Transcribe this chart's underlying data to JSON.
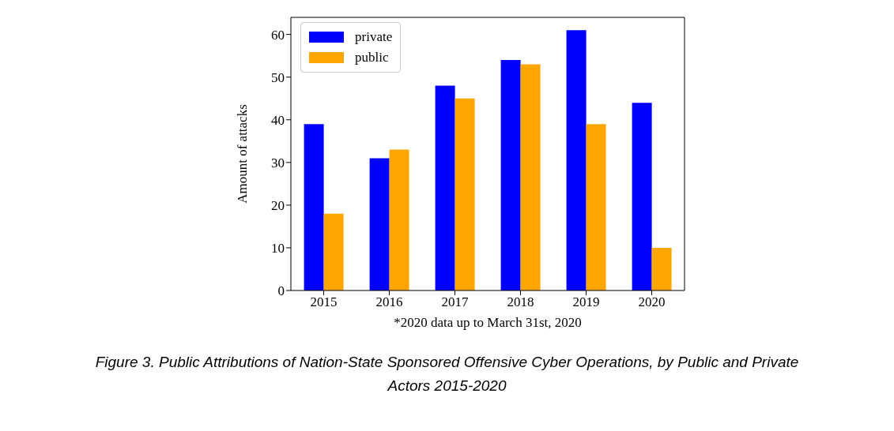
{
  "chart_data": {
    "type": "bar",
    "xlabel": "*2020 data up to March 31st, 2020",
    "ylabel": "Amount of attacks",
    "categories": [
      "2015",
      "2016",
      "2017",
      "2018",
      "2019",
      "2020"
    ],
    "series": [
      {
        "name": "private",
        "color": "#0000ff",
        "values": [
          39,
          31,
          48,
          54,
          61,
          44
        ]
      },
      {
        "name": "public",
        "color": "#ffa500",
        "values": [
          18,
          33,
          45,
          53,
          39,
          10
        ]
      }
    ],
    "ylim": [
      0,
      64
    ],
    "yticks": [
      0,
      10,
      20,
      30,
      40,
      50,
      60
    ],
    "grid": false,
    "legend": "top left",
    "annotations": [
      "Figure 3. Public Attributions of Nation-State Sponsored Offensive Cyber Operations, by Public and Private Actors 2015-2020"
    ]
  }
}
